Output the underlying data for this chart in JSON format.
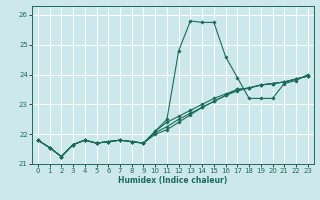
{
  "xlabel": "Humidex (Indice chaleur)",
  "bg_color": "#cce8ec",
  "grid_color": "#ffffff",
  "line_color": "#1a6b5a",
  "xlim": [
    -0.5,
    23.5
  ],
  "ylim": [
    21.0,
    26.3
  ],
  "yticks": [
    21,
    22,
    23,
    24,
    25,
    26
  ],
  "xticks": [
    0,
    1,
    2,
    3,
    4,
    5,
    6,
    7,
    8,
    9,
    10,
    11,
    12,
    13,
    14,
    15,
    16,
    17,
    18,
    19,
    20,
    21,
    22,
    23
  ],
  "series": [
    [
      21.8,
      21.55,
      21.25,
      21.65,
      21.8,
      21.7,
      21.75,
      21.8,
      21.75,
      21.7,
      22.1,
      22.5,
      24.8,
      25.8,
      25.75,
      25.75,
      24.6,
      23.9,
      23.2,
      23.2,
      23.2,
      23.7,
      23.8,
      24.0
    ],
    [
      21.8,
      21.55,
      21.25,
      21.65,
      21.8,
      21.7,
      21.75,
      21.8,
      21.75,
      21.7,
      22.0,
      22.15,
      22.4,
      22.65,
      22.9,
      23.1,
      23.3,
      23.45,
      23.55,
      23.65,
      23.7,
      23.75,
      23.85,
      23.95
    ],
    [
      21.8,
      21.55,
      21.25,
      21.65,
      21.8,
      21.7,
      21.75,
      21.8,
      21.75,
      21.7,
      22.05,
      22.25,
      22.5,
      22.7,
      22.9,
      23.1,
      23.3,
      23.5,
      23.55,
      23.65,
      23.7,
      23.75,
      23.85,
      23.95
    ],
    [
      21.8,
      21.55,
      21.25,
      21.65,
      21.8,
      21.7,
      21.75,
      21.8,
      21.75,
      21.7,
      22.1,
      22.4,
      22.6,
      22.8,
      23.0,
      23.2,
      23.35,
      23.5,
      23.55,
      23.65,
      23.7,
      23.75,
      23.85,
      23.95
    ]
  ]
}
